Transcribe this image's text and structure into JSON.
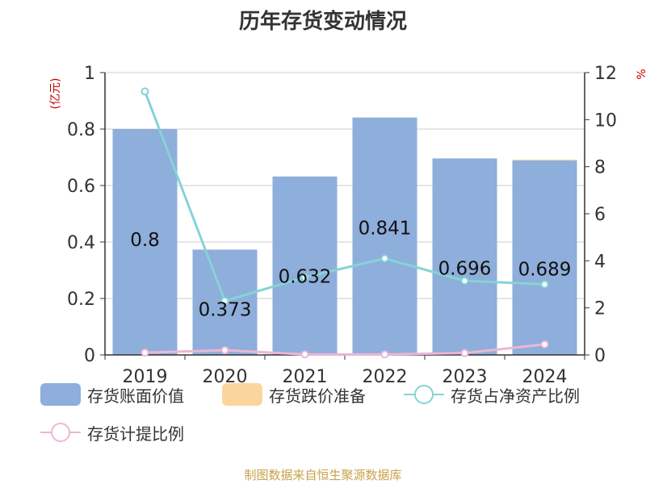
{
  "title": "历年存货变动情况",
  "source": "制图数据来自恒生聚源数据库",
  "chart_data": {
    "type": "bar",
    "categories": [
      "2019",
      "2020",
      "2021",
      "2022",
      "2023",
      "2024"
    ],
    "left_axis": {
      "label": "(亿元)",
      "ylim": [
        0,
        1
      ],
      "ticks": [
        "0",
        "0.2",
        "0.4",
        "0.6",
        "0.8",
        "1"
      ]
    },
    "right_axis": {
      "label": "%",
      "ylim": [
        0,
        12
      ],
      "ticks": [
        "0",
        "2",
        "4",
        "6",
        "8",
        "10",
        "12"
      ]
    },
    "series": [
      {
        "name": "存货账面价值",
        "type": "bar",
        "axis": "left",
        "color": "#8eaedb",
        "values": [
          0.8,
          0.373,
          0.632,
          0.841,
          0.696,
          0.689
        ],
        "data_labels": [
          "0.8",
          "0.373",
          "0.632",
          "0.841",
          "0.696",
          "0.689"
        ]
      },
      {
        "name": "存货跌价准备",
        "type": "bar",
        "axis": "left",
        "color": "#fbd69c",
        "values": [
          0,
          0,
          0,
          0,
          0,
          0.003
        ]
      },
      {
        "name": "存货占净资产比例",
        "type": "line",
        "axis": "right",
        "color": "#86d3d5",
        "values": [
          11.2,
          2.3,
          3.3,
          4.1,
          3.15,
          3.0
        ]
      },
      {
        "name": "存货计提比例",
        "type": "line",
        "axis": "right",
        "color": "#ebb7d5",
        "values": [
          0.1,
          0.2,
          0.02,
          0.02,
          0.08,
          0.45
        ]
      }
    ],
    "grid": true,
    "legend_position": "bottom"
  }
}
